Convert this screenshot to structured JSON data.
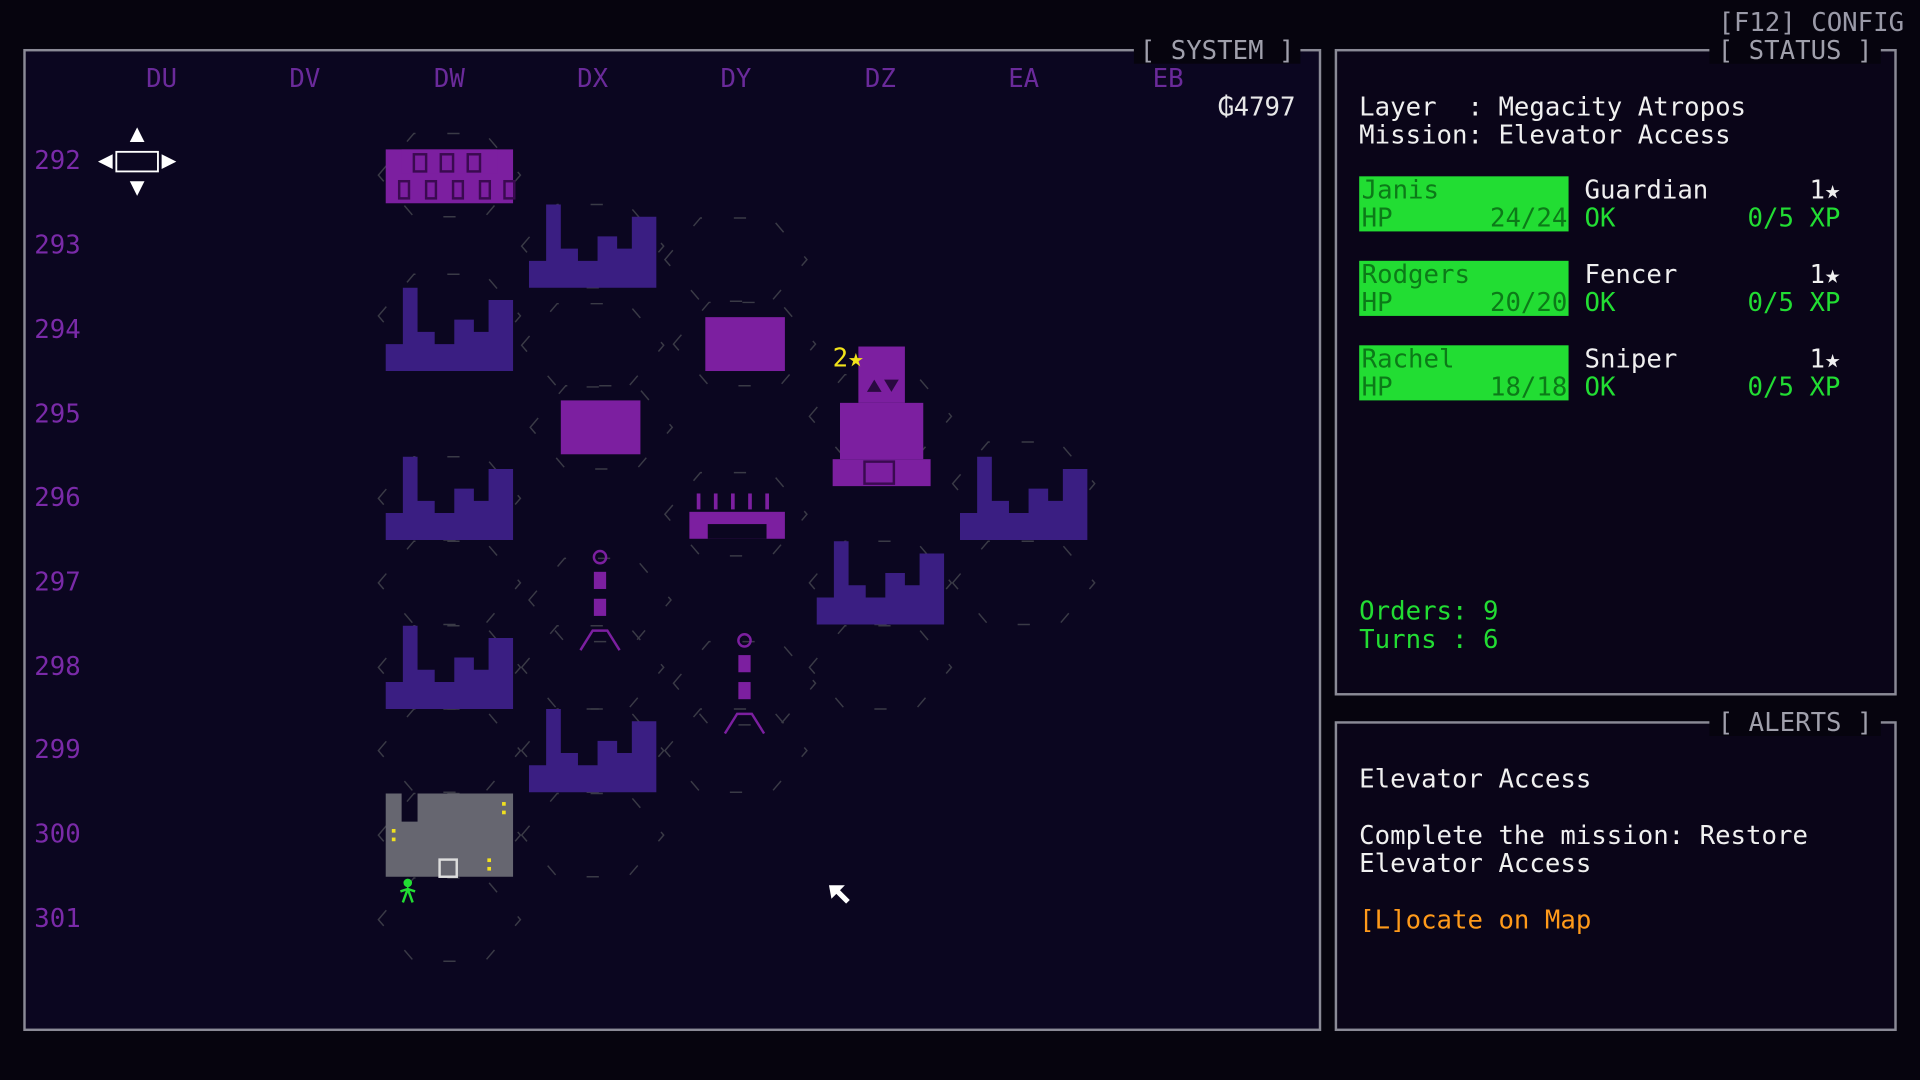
{
  "config": "[F12] CONFIG",
  "system": {
    "title": "[ SYSTEM ]",
    "columns": [
      "DU",
      "DV",
      "DW",
      "DX",
      "DY",
      "DZ",
      "EA",
      "EB"
    ],
    "rows": [
      "292",
      "293",
      "294",
      "295",
      "296",
      "297",
      "298",
      "299",
      "300",
      "301"
    ],
    "credits": "₲4797",
    "marker": "2★"
  },
  "status": {
    "title": "[ STATUS ]",
    "layer": "Layer  : Megacity Atropos",
    "mission": "Mission: Elevator Access",
    "squad": [
      {
        "name": "Janis",
        "hp_label": "HP",
        "hp": "24/24",
        "class": "Guardian",
        "condition": "OK",
        "rank": "1★",
        "xp": "0/5 XP"
      },
      {
        "name": "Rodgers",
        "hp_label": "HP",
        "hp": "20/20",
        "class": "Fencer",
        "condition": "OK",
        "rank": "1★",
        "xp": "0/5 XP"
      },
      {
        "name": "Rachel",
        "hp_label": "HP",
        "hp": "18/18",
        "class": "Sniper",
        "condition": "OK",
        "rank": "1★",
        "xp": "0/5 XP"
      }
    ],
    "orders": "Orders: 9",
    "turns": "Turns : 6"
  },
  "alerts": {
    "title": "[ ALERTS ]",
    "heading": "Elevator Access",
    "body": [
      "Complete the mission: Restore",
      "Elevator Access"
    ],
    "link": "[L]ocate on Map"
  }
}
